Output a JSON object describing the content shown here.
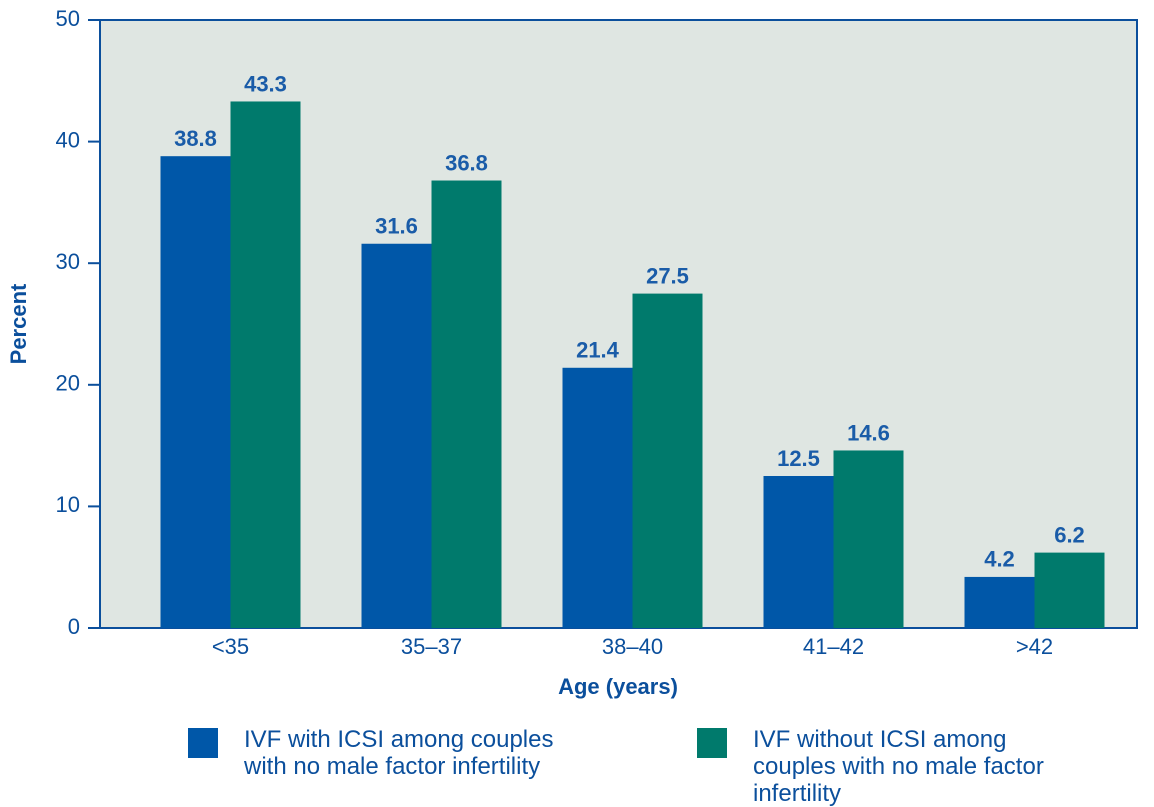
{
  "chart_data": {
    "type": "bar",
    "categories": [
      "<35",
      "35–37",
      "38–40",
      "41–42",
      ">42"
    ],
    "series": [
      {
        "name": "IVF with ICSI among couples with no male factor infertility",
        "color": "#0057a8",
        "values": [
          38.8,
          31.6,
          21.4,
          12.5,
          4.2
        ]
      },
      {
        "name": "IVF without ICSI among couples with no male factor infertility",
        "color": "#007a6c",
        "values": [
          43.3,
          36.8,
          27.5,
          14.6,
          6.2
        ]
      }
    ],
    "xlabel": "Age (years)",
    "ylabel": "Percent",
    "ylim": [
      0,
      50
    ],
    "yticks": [
      0,
      10,
      20,
      30,
      40,
      50
    ],
    "background": "#dfe6e2",
    "legend": "bottom"
  }
}
